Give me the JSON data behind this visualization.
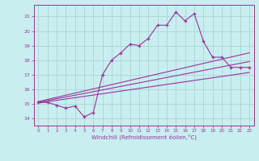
{
  "xlabel": "Windchill (Refroidissement éolien,°C)",
  "xlim": [
    -0.5,
    23.5
  ],
  "ylim": [
    13.5,
    21.8
  ],
  "yticks": [
    14,
    15,
    16,
    17,
    18,
    19,
    20,
    21
  ],
  "xticks": [
    0,
    1,
    2,
    3,
    4,
    5,
    6,
    7,
    8,
    9,
    10,
    11,
    12,
    13,
    14,
    15,
    16,
    17,
    18,
    19,
    20,
    21,
    22,
    23
  ],
  "bg_color": "#c8eef0",
  "grid_color": "#aad4d8",
  "line_color": "#993399",
  "line1_x": [
    0,
    1,
    2,
    3,
    4,
    5,
    6,
    7,
    8,
    9,
    10,
    11,
    12,
    13,
    14,
    15,
    16,
    17,
    18,
    19,
    20,
    21,
    22,
    23
  ],
  "line1_y": [
    15.1,
    15.1,
    14.9,
    14.7,
    14.85,
    14.1,
    14.4,
    17.0,
    18.0,
    18.5,
    19.1,
    19.0,
    19.5,
    20.4,
    20.4,
    21.3,
    20.7,
    21.2,
    19.3,
    18.2,
    18.2,
    17.5,
    17.5,
    17.5
  ],
  "line2_x": [
    0,
    23
  ],
  "line2_y": [
    15.15,
    18.5
  ],
  "line3_x": [
    0,
    23
  ],
  "line3_y": [
    15.1,
    17.9
  ],
  "line4_x": [
    0,
    23
  ],
  "line4_y": [
    15.05,
    17.15
  ]
}
